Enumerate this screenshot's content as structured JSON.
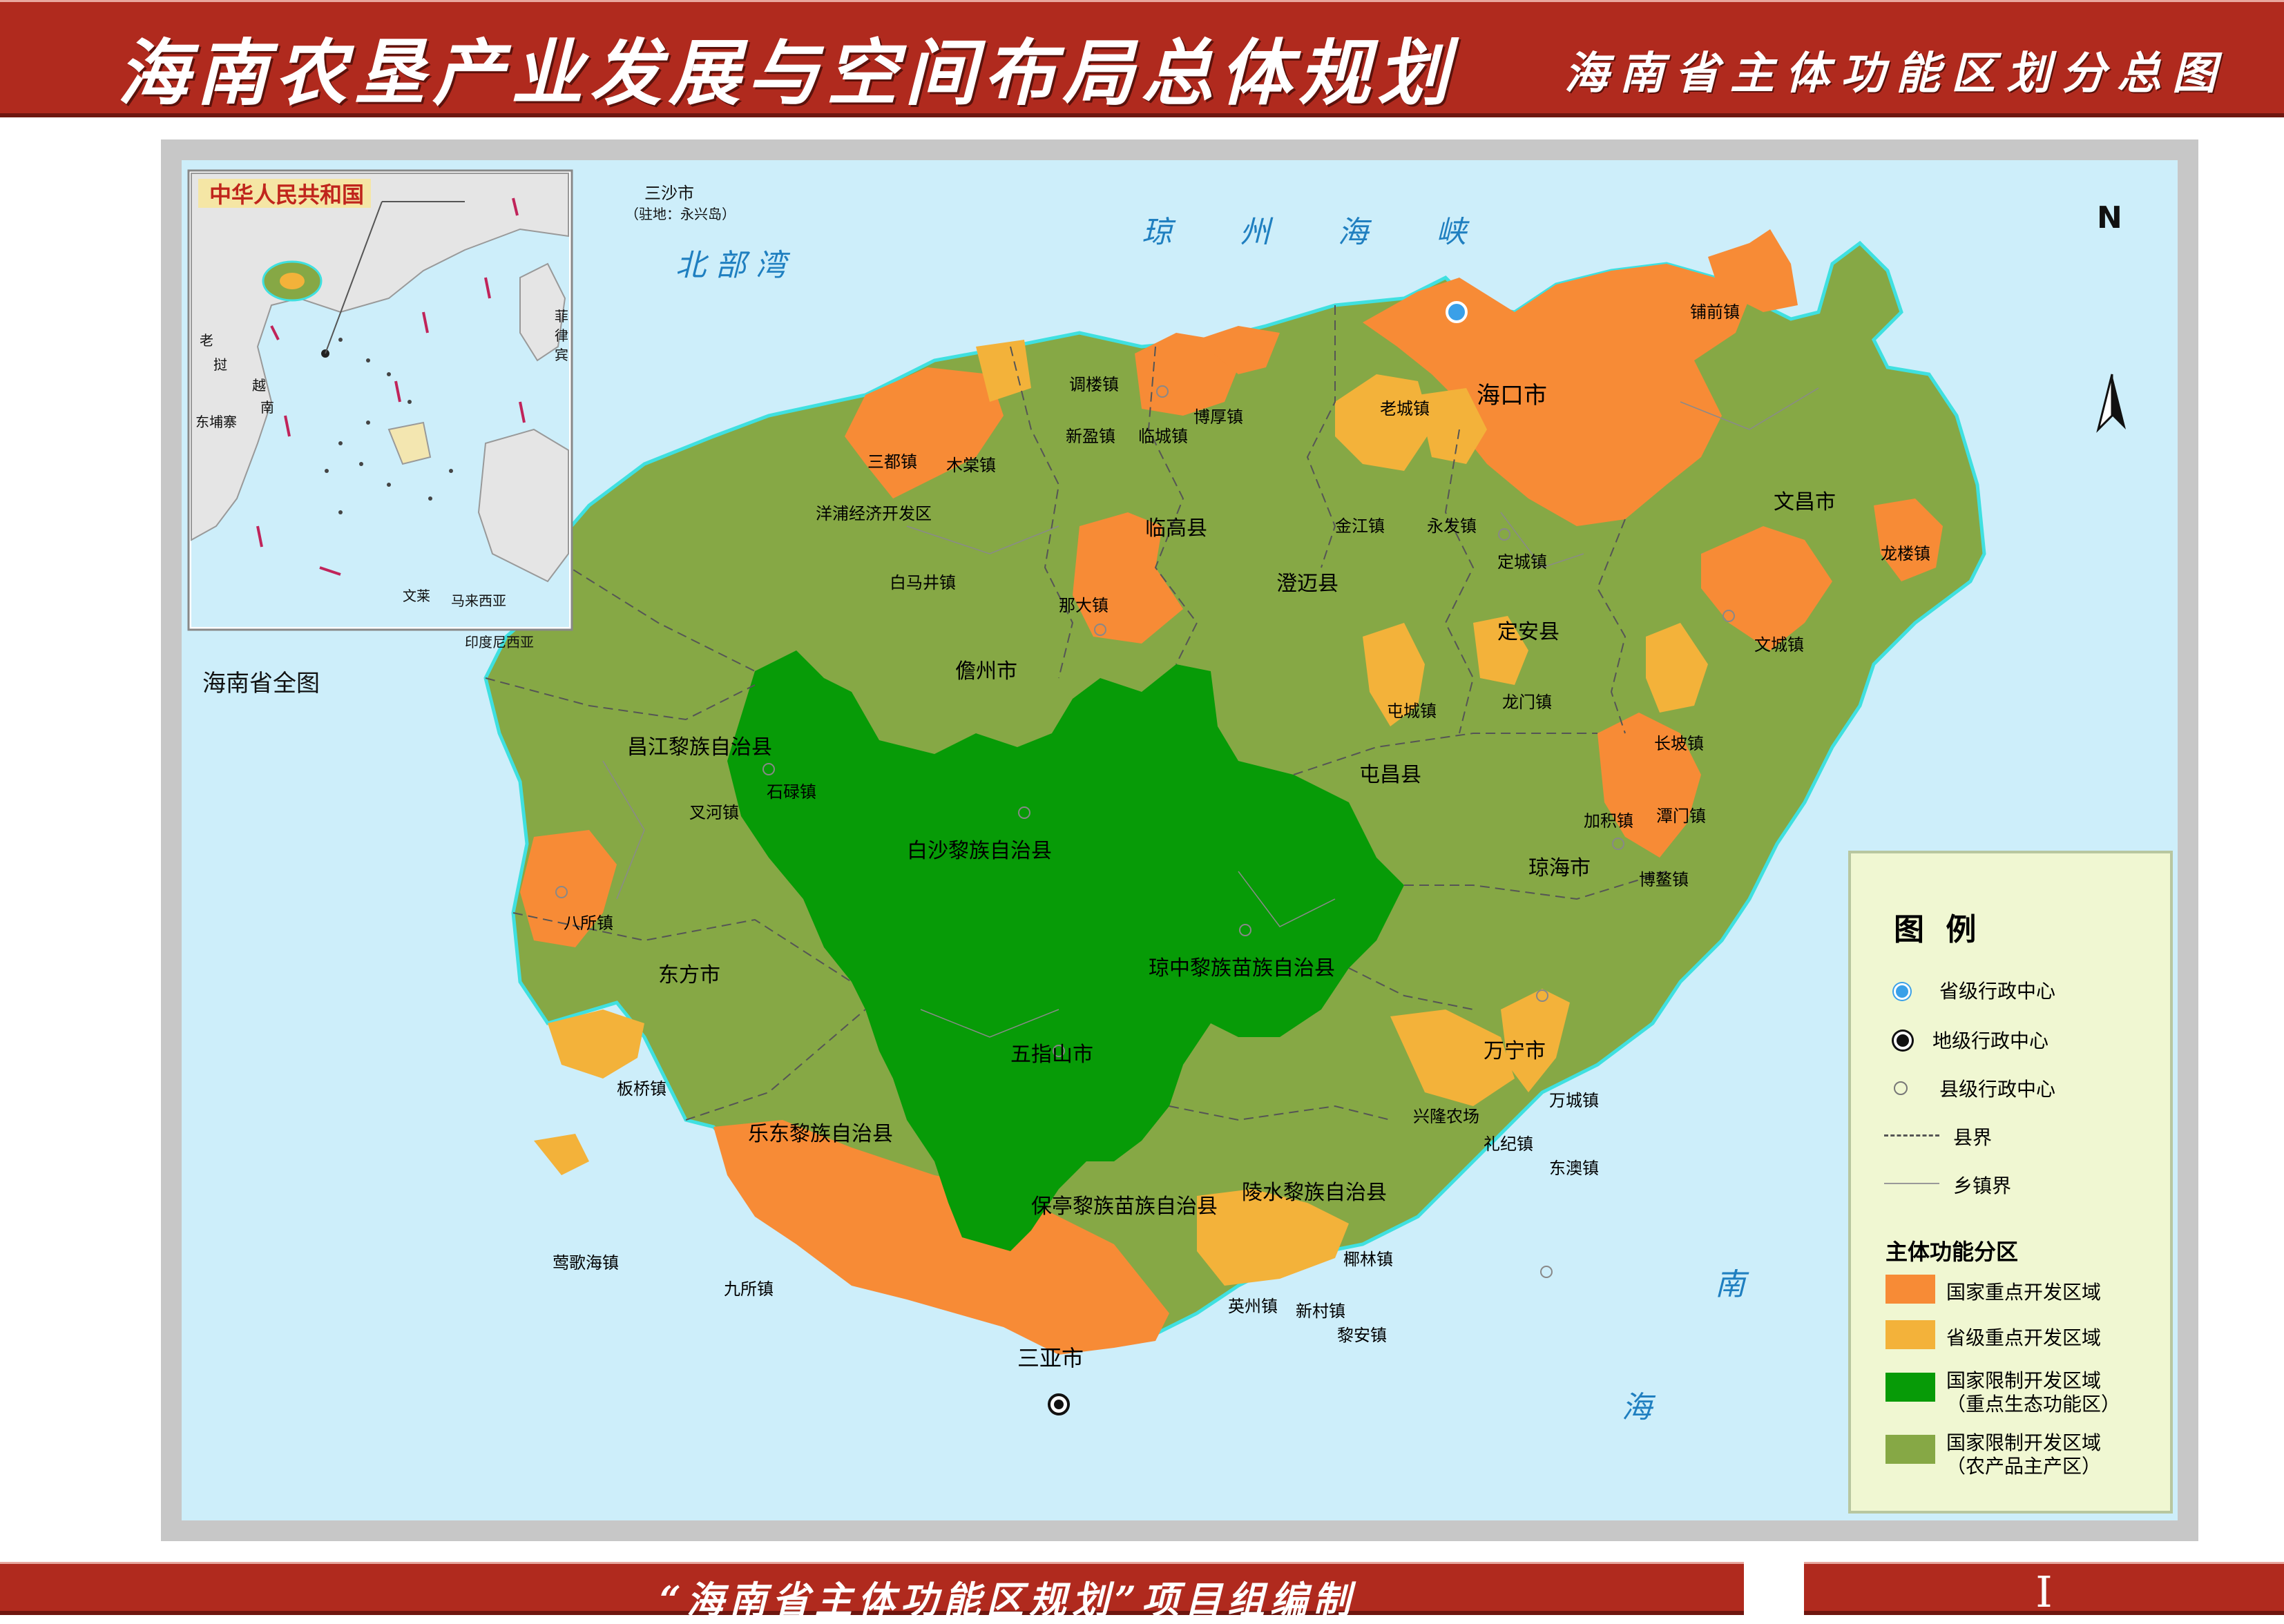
{
  "header": {
    "title": "海南农垦产业发展与空间布局总体规划",
    "subtitle": "海南省主体功能区划分总图"
  },
  "footer": {
    "credit": "“海南省主体功能区规划”项目组编制",
    "page_number": "I"
  },
  "colors": {
    "sea": "#cdeefa",
    "national_key_dev": "#f78b36",
    "provincial_key_dev": "#f3b23a",
    "restricted_ecological": "#079b07",
    "restricted_agricultural": "#86a845",
    "banner": "#b02a1e",
    "legend_bg": "#f0f7d2"
  },
  "inset": {
    "country_label": "中华人民共和国",
    "caption": "海南省全图",
    "callout_city": "三沙市",
    "callout_note": "（驻地：永兴岛）",
    "countries": [
      "老",
      "挝",
      "越",
      "南",
      "东埔寨",
      "菲",
      "律",
      "宾",
      "文莱",
      "马来西亚",
      "印度尼西亚"
    ]
  },
  "seas": {
    "qiongzhou": [
      "琼",
      "州",
      "海",
      "峡"
    ],
    "beibu": "北 部 湾",
    "nanhai": [
      "南",
      "海"
    ]
  },
  "compass": {
    "label": "N"
  },
  "regions": {
    "counties": [
      "海口市",
      "文昌市",
      "临高县",
      "澄迈县",
      "定安县",
      "儋州市",
      "屯昌县",
      "昌江黎族自治县",
      "白沙黎族自治县",
      "琼海市",
      "琼中黎族苗族自治县",
      "东方市",
      "五指山市",
      "万宁市",
      "乐东黎族自治县",
      "保亭黎族苗族自治县",
      "陵水黎族自治县",
      "三亚市"
    ],
    "towns": [
      "铺前镇",
      "调楼镇",
      "新盈镇",
      "临城镇",
      "博厚镇",
      "老城镇",
      "三都镇",
      "木棠镇",
      "洋浦经济开发区",
      "金江镇",
      "永发镇",
      "定城镇",
      "白马井镇",
      "龙楼镇",
      "那大镇",
      "文城镇",
      "龙门镇",
      "屯城镇",
      "长坡镇",
      "石碌镇",
      "叉河镇",
      "加积镇",
      "潭门镇",
      "博鳌镇",
      "八所镇",
      "板桥镇",
      "兴隆农场",
      "万城镇",
      "礼纪镇",
      "东澳镇",
      "莺歌海镇",
      "九所镇",
      "椰林镇",
      "英州镇",
      "新村镇",
      "黎安镇"
    ]
  },
  "legend": {
    "title": "图 例",
    "symbols": [
      {
        "label": "省级行政中心",
        "icon": "provincial-center-icon"
      },
      {
        "label": "地级行政中心",
        "icon": "prefecture-center-icon"
      },
      {
        "label": "县级行政中心",
        "icon": "county-center-icon"
      },
      {
        "label": "县界",
        "icon": "county-boundary-icon"
      },
      {
        "label": "乡镇界",
        "icon": "town-boundary-icon"
      }
    ],
    "zones_title": "主体功能分区",
    "zones": [
      {
        "line1": "国家重点开发区域",
        "line2": "",
        "color": "#f78b36"
      },
      {
        "line1": "省级重点开发区域",
        "line2": "",
        "color": "#f3b23a"
      },
      {
        "line1": "国家限制开发区域",
        "line2": "（重点生态功能区）",
        "color": "#079b07"
      },
      {
        "line1": "国家限制开发区域",
        "line2": "（农产品主产区）",
        "color": "#86a845"
      }
    ]
  }
}
